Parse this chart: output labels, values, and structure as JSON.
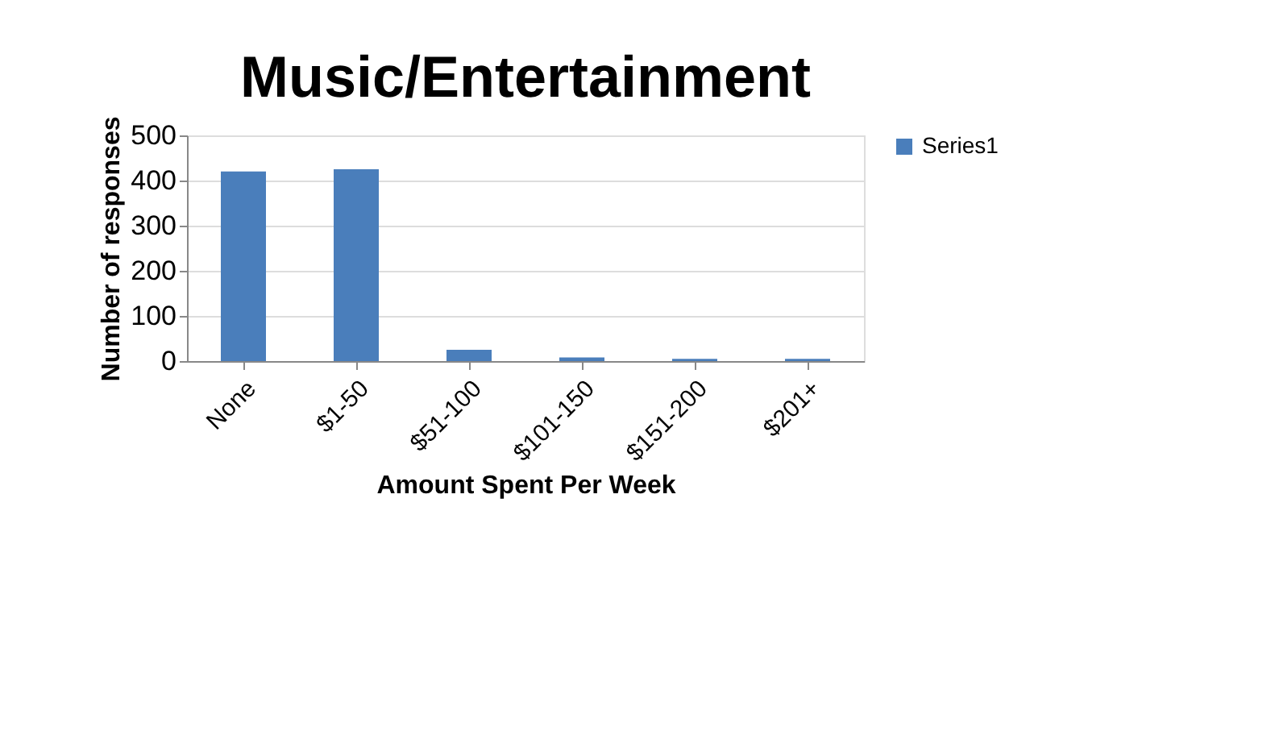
{
  "chart_data": {
    "type": "bar",
    "title": "Music/Entertainment",
    "xlabel": "Amount Spent Per Week",
    "ylabel": "Number of responses",
    "categories": [
      "None",
      "$1-50",
      "$51-100",
      "$101-150",
      "$151-200",
      "$201+"
    ],
    "series": [
      {
        "name": "Series1",
        "color": "#4a7ebb",
        "values": [
          420,
          425,
          25,
          8,
          5,
          5
        ]
      }
    ],
    "ylim": [
      0,
      500
    ],
    "yticks": [
      0,
      100,
      200,
      300,
      400,
      500
    ],
    "grid": "y",
    "legend": "right"
  }
}
